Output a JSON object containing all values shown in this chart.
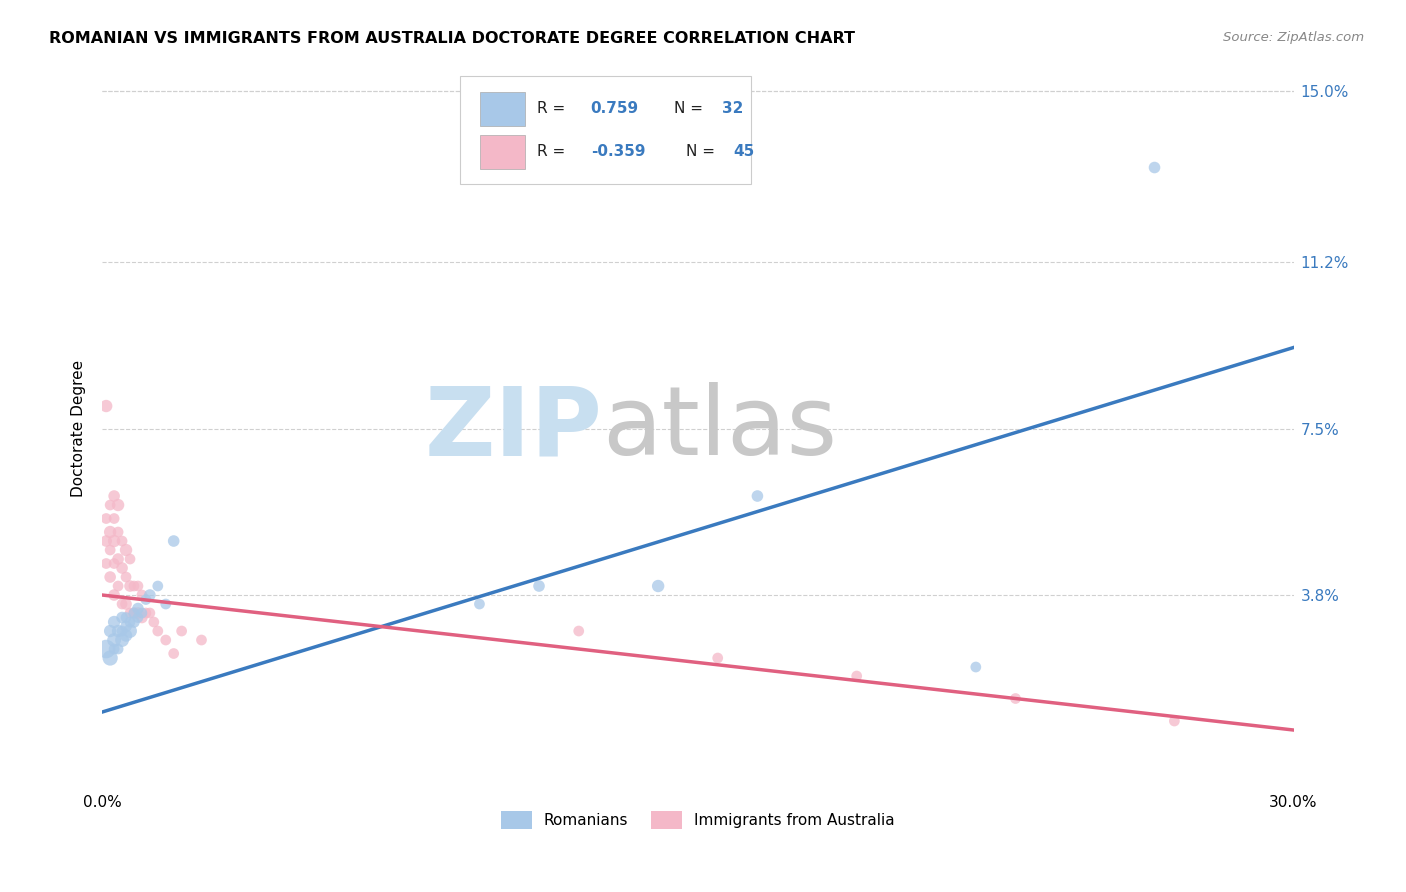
{
  "title": "ROMANIAN VS IMMIGRANTS FROM AUSTRALIA DOCTORATE DEGREE CORRELATION CHART",
  "source": "Source: ZipAtlas.com",
  "ylabel": "Doctorate Degree",
  "xlim": [
    0.0,
    0.3
  ],
  "ylim": [
    -0.005,
    0.155
  ],
  "xticks": [
    0.0,
    0.05,
    0.1,
    0.15,
    0.2,
    0.25,
    0.3
  ],
  "xticklabels": [
    "0.0%",
    "",
    "",
    "",
    "",
    "",
    "30.0%"
  ],
  "yticks": [
    0.0,
    0.038,
    0.075,
    0.112,
    0.15
  ],
  "yticklabels": [
    "",
    "3.8%",
    "7.5%",
    "11.2%",
    "15.0%"
  ],
  "blue_color": "#a8c8e8",
  "pink_color": "#f4b8c8",
  "blue_line_color": "#3a7abf",
  "pink_line_color": "#e06080",
  "blue_line_x": [
    0.0,
    0.3
  ],
  "blue_line_y": [
    0.012,
    0.093
  ],
  "pink_line_x": [
    0.0,
    0.3
  ],
  "pink_line_y": [
    0.038,
    0.008
  ],
  "blue_scatter_x": [
    0.001,
    0.002,
    0.002,
    0.003,
    0.003,
    0.003,
    0.004,
    0.004,
    0.005,
    0.005,
    0.005,
    0.006,
    0.006,
    0.006,
    0.007,
    0.007,
    0.008,
    0.008,
    0.009,
    0.009,
    0.01,
    0.011,
    0.012,
    0.014,
    0.016,
    0.018,
    0.095,
    0.11,
    0.14,
    0.165,
    0.22,
    0.265
  ],
  "blue_scatter_y": [
    0.026,
    0.024,
    0.03,
    0.028,
    0.032,
    0.026,
    0.03,
    0.026,
    0.028,
    0.033,
    0.03,
    0.029,
    0.033,
    0.031,
    0.03,
    0.032,
    0.032,
    0.034,
    0.033,
    0.035,
    0.034,
    0.037,
    0.038,
    0.04,
    0.036,
    0.05,
    0.036,
    0.04,
    0.04,
    0.06,
    0.022,
    0.133
  ],
  "blue_scatter_size": [
    180,
    120,
    80,
    100,
    80,
    60,
    80,
    60,
    100,
    70,
    60,
    80,
    60,
    70,
    100,
    60,
    70,
    60,
    60,
    70,
    60,
    60,
    70,
    60,
    60,
    70,
    60,
    70,
    80,
    70,
    60,
    70
  ],
  "pink_scatter_x": [
    0.001,
    0.001,
    0.001,
    0.002,
    0.002,
    0.002,
    0.002,
    0.003,
    0.003,
    0.003,
    0.003,
    0.003,
    0.004,
    0.004,
    0.004,
    0.004,
    0.005,
    0.005,
    0.005,
    0.006,
    0.006,
    0.006,
    0.007,
    0.007,
    0.007,
    0.008,
    0.008,
    0.009,
    0.009,
    0.01,
    0.01,
    0.011,
    0.012,
    0.013,
    0.014,
    0.016,
    0.018,
    0.02,
    0.025,
    0.12,
    0.155,
    0.19,
    0.23,
    0.27,
    0.001
  ],
  "pink_scatter_y": [
    0.045,
    0.05,
    0.055,
    0.042,
    0.048,
    0.052,
    0.058,
    0.038,
    0.045,
    0.05,
    0.055,
    0.06,
    0.04,
    0.046,
    0.052,
    0.058,
    0.036,
    0.044,
    0.05,
    0.036,
    0.042,
    0.048,
    0.034,
    0.04,
    0.046,
    0.034,
    0.04,
    0.034,
    0.04,
    0.033,
    0.038,
    0.034,
    0.034,
    0.032,
    0.03,
    0.028,
    0.025,
    0.03,
    0.028,
    0.03,
    0.024,
    0.02,
    0.015,
    0.01,
    0.08
  ],
  "pink_scatter_size": [
    60,
    70,
    60,
    70,
    60,
    80,
    60,
    70,
    60,
    80,
    60,
    70,
    60,
    70,
    60,
    80,
    60,
    70,
    60,
    70,
    60,
    80,
    60,
    70,
    60,
    70,
    60,
    70,
    60,
    70,
    60,
    60,
    60,
    60,
    60,
    60,
    60,
    60,
    60,
    60,
    60,
    60,
    60,
    60,
    80
  ],
  "grid_color": "#d0d0d0",
  "background_color": "#ffffff"
}
